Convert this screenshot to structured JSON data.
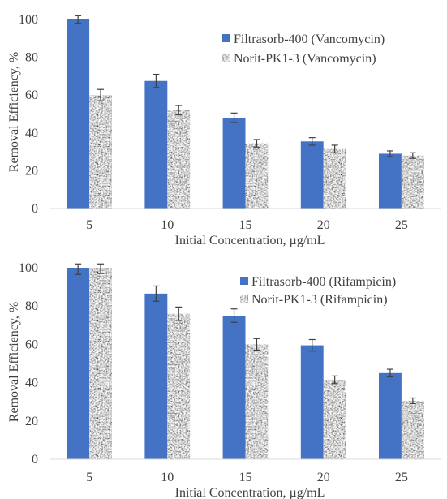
{
  "chart_data": [
    {
      "type": "bar",
      "categories": [
        "5",
        "10",
        "15",
        "20",
        "25"
      ],
      "series": [
        {
          "name": "Filtrasorb-400 (Vancomycin)",
          "values": [
            100,
            67.5,
            48,
            35.5,
            29
          ],
          "errors": [
            2.0,
            3.5,
            2.5,
            2.0,
            1.5
          ],
          "color": "#4472C4",
          "pattern": "solid"
        },
        {
          "name": "Norit-PK1-3 (Vancomycin)",
          "values": [
            60,
            52,
            34.5,
            31.5,
            28
          ],
          "errors": [
            3.0,
            2.5,
            2.0,
            2.0,
            1.5
          ],
          "color": "#808080",
          "pattern": "granite"
        }
      ],
      "xlabel": "Initial Concentration, µg/mL",
      "ylabel": "Removal Efficiency, %",
      "ylim": [
        0,
        100
      ],
      "yticks": [
        "0",
        "20",
        "40",
        "60",
        "80",
        "100"
      ],
      "grid": false,
      "legend": "top-right"
    },
    {
      "type": "bar",
      "categories": [
        "5",
        "10",
        "15",
        "20",
        "25"
      ],
      "series": [
        {
          "name": "Filtrasorb-400 (Rifampicin)",
          "values": [
            100,
            86.5,
            75,
            59.5,
            45
          ],
          "errors": [
            3.5,
            4.0,
            3.5,
            3.0,
            2.0
          ],
          "color": "#4472C4",
          "pattern": "solid"
        },
        {
          "name": "Norit-PK1-3 (Rifampicin)",
          "values": [
            100,
            76,
            60,
            41.5,
            30.5
          ],
          "errors": [
            3.0,
            3.5,
            3.0,
            2.0,
            1.5
          ],
          "color": "#808080",
          "pattern": "granite"
        }
      ],
      "xlabel": "Initial Concentration, µg/mL",
      "ylabel": "Removal Efficiency, %",
      "ylim": [
        0,
        100
      ],
      "yticks": [
        "0",
        "20",
        "40",
        "60",
        "80",
        "100"
      ],
      "grid": false,
      "legend": "top-right"
    }
  ]
}
